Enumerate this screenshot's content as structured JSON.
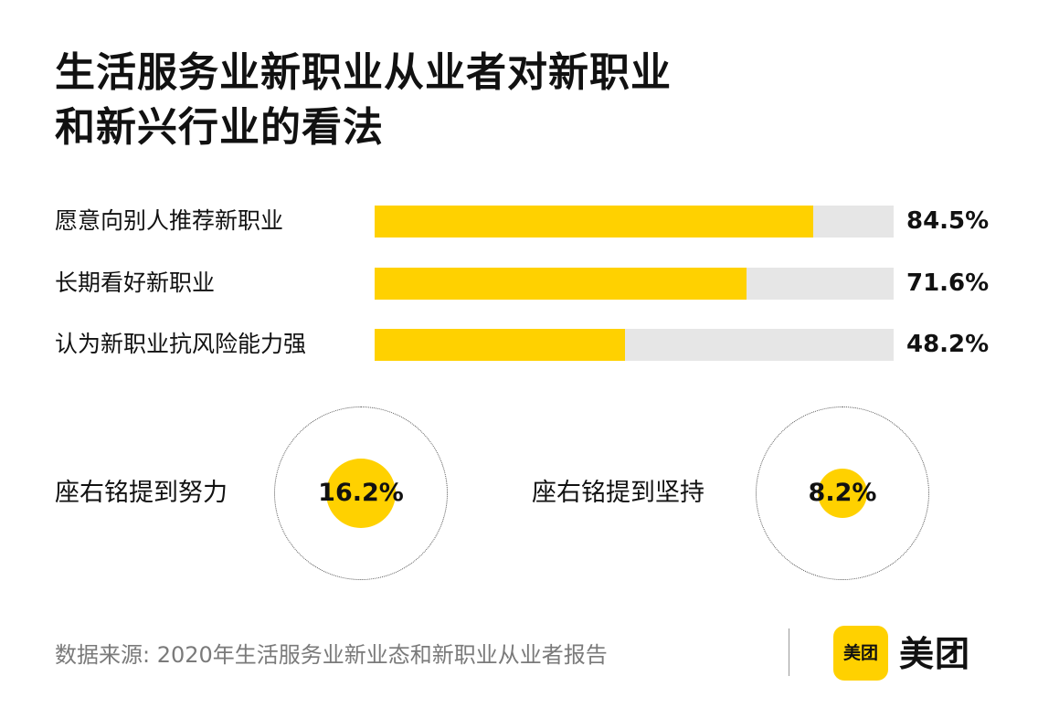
{
  "title": {
    "line1": "生活服务业新职业从业者对新职业",
    "line2": "和新兴行业的看法"
  },
  "colors": {
    "accent": "#ffd100",
    "track": "#e6e6e6",
    "source_text": "#7a7a7a"
  },
  "chart_data": [
    {
      "type": "bar",
      "orientation": "horizontal",
      "categories": [
        "愿意向别人推荐新职业",
        "长期看好新职业",
        "认为新职业抗风险能力强"
      ],
      "values": [
        84.5,
        71.6,
        48.2
      ],
      "value_labels": [
        "84.5%",
        "71.6%",
        "48.2%"
      ],
      "xlim": [
        0,
        100
      ],
      "grid": false
    },
    {
      "type": "bubble",
      "categories": [
        "座右铭提到努力",
        "座右铭提到坚持"
      ],
      "values": [
        16.2,
        8.2
      ],
      "value_labels": [
        "16.2%",
        "8.2%"
      ]
    }
  ],
  "footer": {
    "source": "数据来源: 2020年生活服务业新业态和新职业从业者报告",
    "logo_icon_text": "美团",
    "logo_text": "美团"
  }
}
